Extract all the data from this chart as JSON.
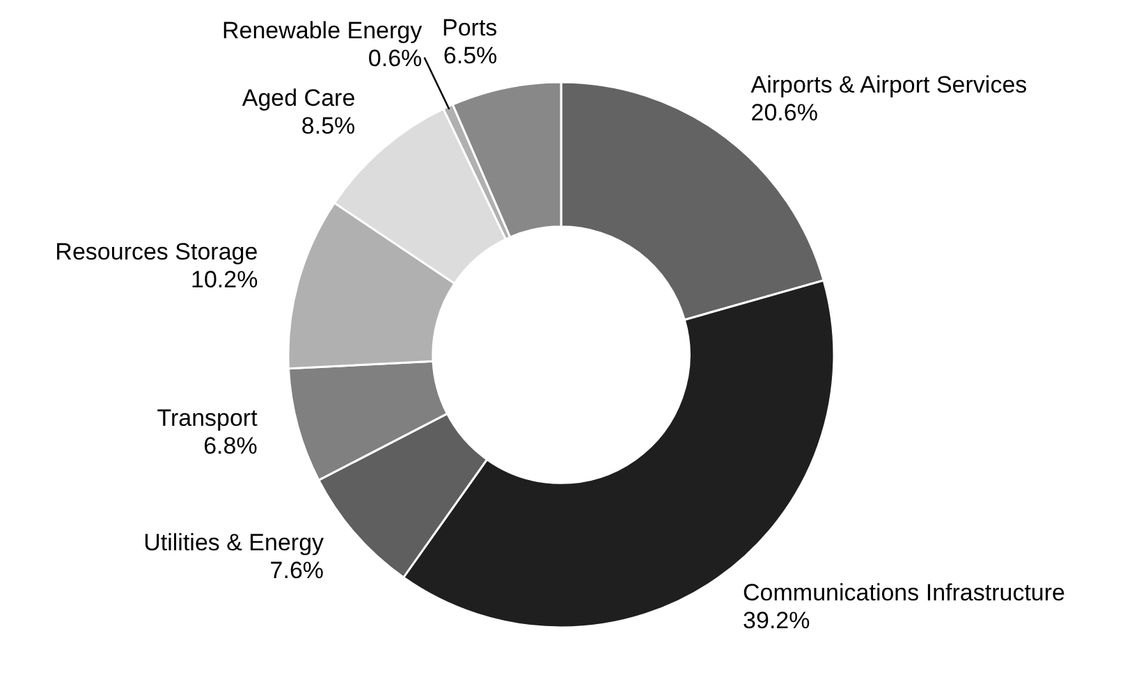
{
  "chart_data": {
    "type": "donut",
    "categories": [
      "Airports & Airport Services",
      "Communications Infrastructure",
      "Utilities & Energy",
      "Transport",
      "Resources Storage",
      "Aged Care",
      "Renewable Energy",
      "Ports"
    ],
    "values": [
      20.6,
      39.2,
      7.6,
      6.8,
      10.2,
      8.5,
      0.6,
      6.5
    ],
    "value_labels": [
      "20.6%",
      "39.2%",
      "7.6%",
      "6.8%",
      "10.2%",
      "8.5%",
      "0.6%",
      "6.5%"
    ],
    "colors": [
      "#636363",
      "#1f1f1f",
      "#5f5f5f",
      "#808080",
      "#b0b0b0",
      "#dcdcdc",
      "#b0b0b0",
      "#888888"
    ]
  }
}
